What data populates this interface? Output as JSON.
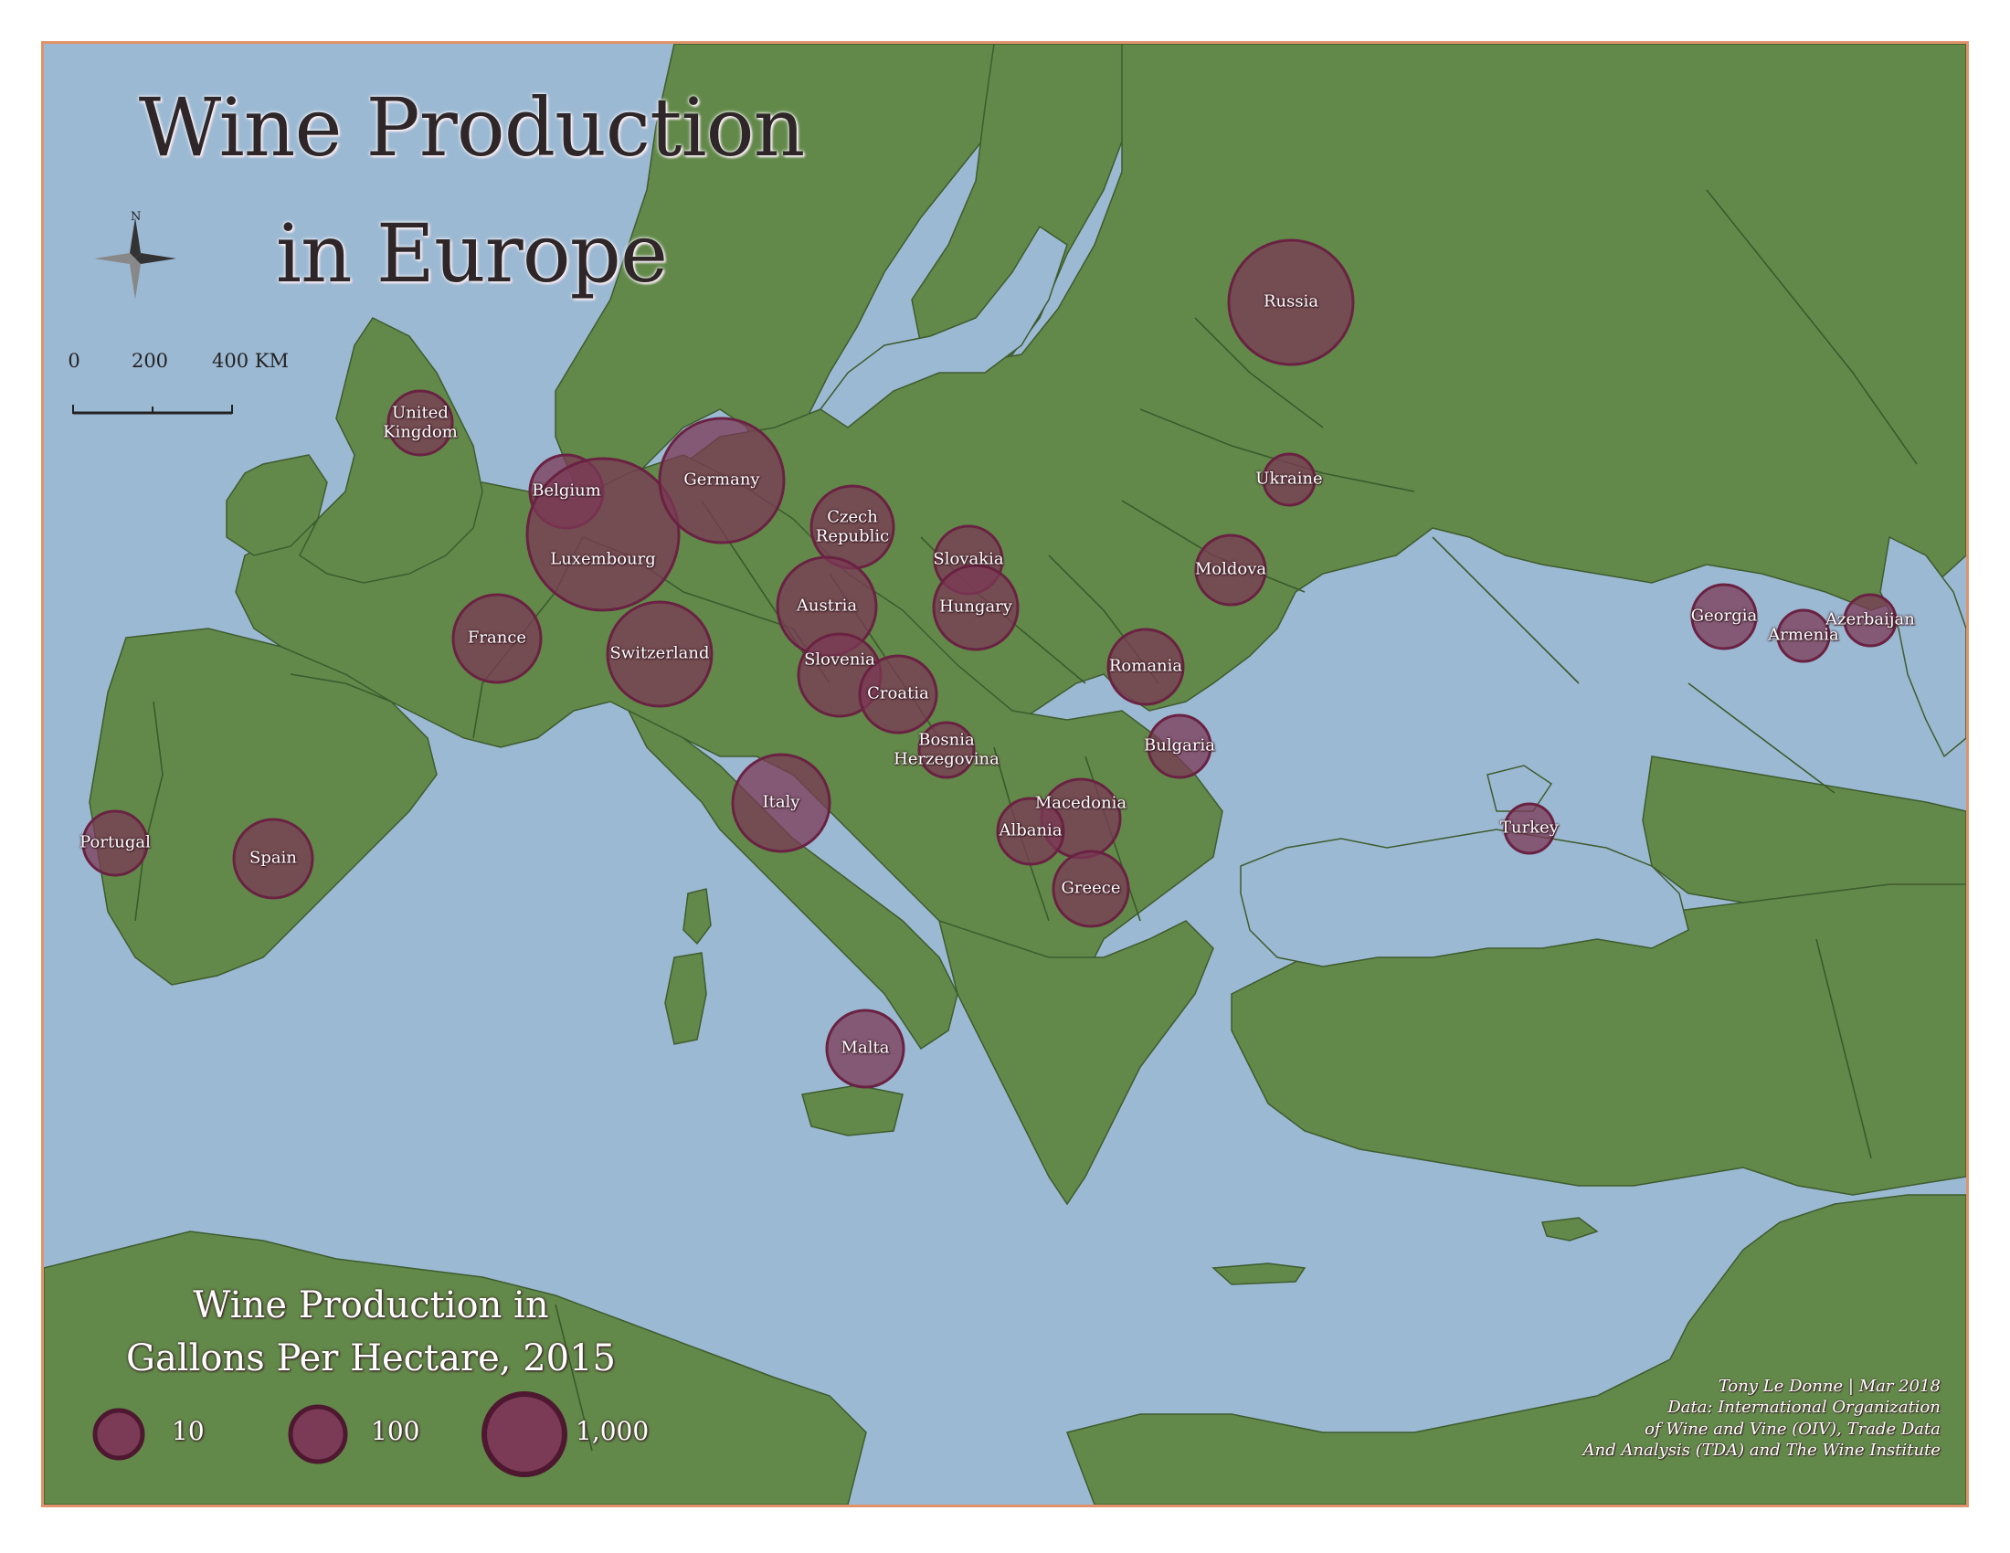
{
  "map": {
    "title_line1": "Wine Production",
    "title_line2": "in Europe",
    "compass_label": "N",
    "scale": {
      "ticks": [
        "0",
        "200",
        "400 KM"
      ]
    },
    "legend": {
      "title_line1": "Wine Production in",
      "title_line2": "Gallons Per Hectare, 2015",
      "sizes": [
        "10",
        "100",
        "1,000"
      ]
    },
    "credits": [
      "Tony Le Donne | Mar 2018",
      "Data: International Organization",
      "of Wine and Vine (OIV), Trade Data",
      "And Analysis (TDA) and The Wine Institute"
    ],
    "colors": {
      "sea": "#9cb9d3",
      "land": "#62894a",
      "symbol_fill": "#7b3a55",
      "symbol_stroke": "#6a2242",
      "frame": "#e0936a"
    },
    "countries": [
      {
        "name": "Russia"
      },
      {
        "name": "United Kingdom"
      },
      {
        "name": "Belgium"
      },
      {
        "name": "Luxembourg"
      },
      {
        "name": "Germany"
      },
      {
        "name": "Czech Republic"
      },
      {
        "name": "Ukraine"
      },
      {
        "name": "Slovakia"
      },
      {
        "name": "Moldova"
      },
      {
        "name": "Austria"
      },
      {
        "name": "Hungary"
      },
      {
        "name": "France"
      },
      {
        "name": "Switzerland"
      },
      {
        "name": "Slovenia"
      },
      {
        "name": "Croatia"
      },
      {
        "name": "Romania"
      },
      {
        "name": "Bosnia Herzegovina"
      },
      {
        "name": "Bulgaria"
      },
      {
        "name": "Italy"
      },
      {
        "name": "Macedonia"
      },
      {
        "name": "Albania"
      },
      {
        "name": "Greece"
      },
      {
        "name": "Portugal"
      },
      {
        "name": "Spain"
      },
      {
        "name": "Turkey"
      },
      {
        "name": "Malta"
      },
      {
        "name": "Georgia"
      },
      {
        "name": "Armenia"
      },
      {
        "name": "Azerbaijan"
      }
    ]
  }
}
